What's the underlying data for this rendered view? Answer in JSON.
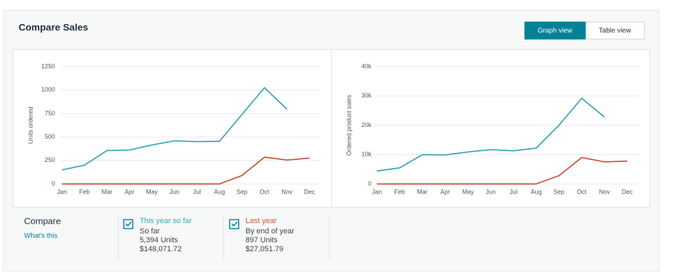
{
  "header": {
    "title": "Compare Sales",
    "view_buttons": [
      "Graph view",
      "Table view"
    ]
  },
  "chart_data": [
    {
      "type": "line",
      "y_label": "Units ordered",
      "categories": [
        "Jan",
        "Feb",
        "Mar",
        "Apr",
        "May",
        "Jun",
        "Jul",
        "Aug",
        "Sep",
        "Oct",
        "Nov",
        "Dec"
      ],
      "series": [
        {
          "name": "This year so far",
          "color": "#3aa6b9",
          "values": [
            150,
            200,
            355,
            362,
            415,
            460,
            450,
            455,
            740,
            1025,
            795,
            null
          ]
        },
        {
          "name": "Last year",
          "color": "#c9573a",
          "values": [
            0,
            0,
            0,
            0,
            0,
            0,
            0,
            0,
            90,
            285,
            255,
            275
          ]
        }
      ],
      "ylim": [
        0,
        1250
      ],
      "yticks": [
        0,
        250,
        500,
        750,
        1000,
        1250
      ],
      "grid": true
    },
    {
      "type": "line",
      "y_label": "Ordered product sales",
      "categories": [
        "Jan",
        "Feb",
        "Mar",
        "Apr",
        "May",
        "Jun",
        "Jul",
        "Aug",
        "Sep",
        "Oct",
        "Nov",
        "Dec"
      ],
      "series": [
        {
          "name": "This year so far",
          "color": "#3aa6b9",
          "values": [
            4400,
            5500,
            10000,
            9900,
            10900,
            11700,
            11300,
            12200,
            20000,
            29200,
            22800,
            null
          ]
        },
        {
          "name": "Last year",
          "color": "#c9573a",
          "values": [
            0,
            0,
            0,
            0,
            0,
            0,
            0,
            0,
            2800,
            9000,
            7500,
            7800
          ]
        }
      ],
      "ylim": [
        0,
        40000
      ],
      "yticks": [
        0,
        {
          "value": 10000,
          "label": "10k"
        },
        {
          "value": 20000,
          "label": "20k"
        },
        {
          "value": 30000,
          "label": "30k"
        },
        {
          "value": 40000,
          "label": "40k"
        }
      ],
      "grid": true
    }
  ],
  "compare": {
    "title": "Compare",
    "link": "What's this",
    "options": [
      {
        "label": "This year so far",
        "period": "So far",
        "units": "5,394 Units",
        "sales": "$148,071.72"
      },
      {
        "label": "Last year",
        "period": "By end of year",
        "units": "897 Units",
        "sales": "$27,051.79"
      }
    ]
  }
}
